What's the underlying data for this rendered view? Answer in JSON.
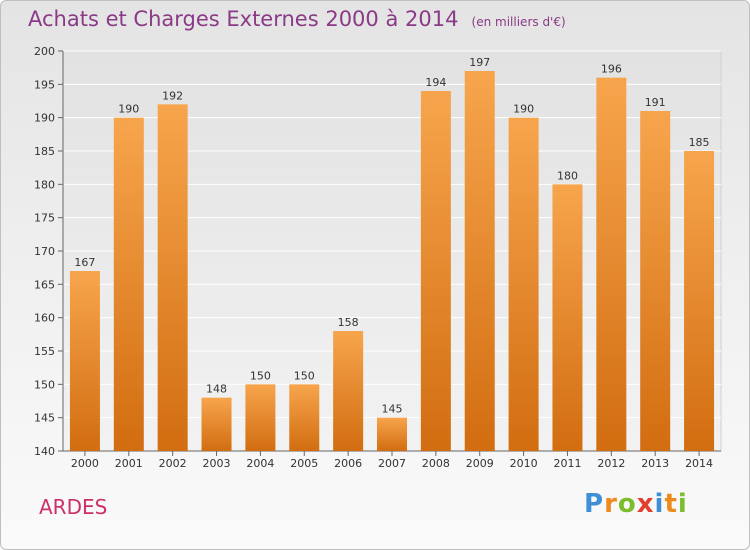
{
  "header": {
    "title": "Achats et Charges Externes 2000 à 2014",
    "unit": "(en milliers d'€)"
  },
  "commune": "ARDES",
  "logo": "Proxiti",
  "colors": {
    "bar_light": "#f7a54d",
    "bar_dark": "#d26d10",
    "title": "#8a3a86",
    "commune": "#cc2f6a"
  },
  "chart_data": {
    "type": "bar",
    "categories": [
      "2000",
      "2001",
      "2002",
      "2003",
      "2004",
      "2005",
      "2006",
      "2007",
      "2008",
      "2009",
      "2010",
      "2011",
      "2012",
      "2013",
      "2014"
    ],
    "values": [
      167,
      190,
      192,
      148,
      150,
      150,
      158,
      145,
      194,
      197,
      190,
      180,
      196,
      191,
      185
    ],
    "ylim": [
      140,
      200
    ],
    "yticks": [
      140,
      145,
      150,
      155,
      160,
      165,
      170,
      175,
      180,
      185,
      190,
      195,
      200
    ],
    "grid": true,
    "xlabel": "",
    "ylabel": ""
  }
}
